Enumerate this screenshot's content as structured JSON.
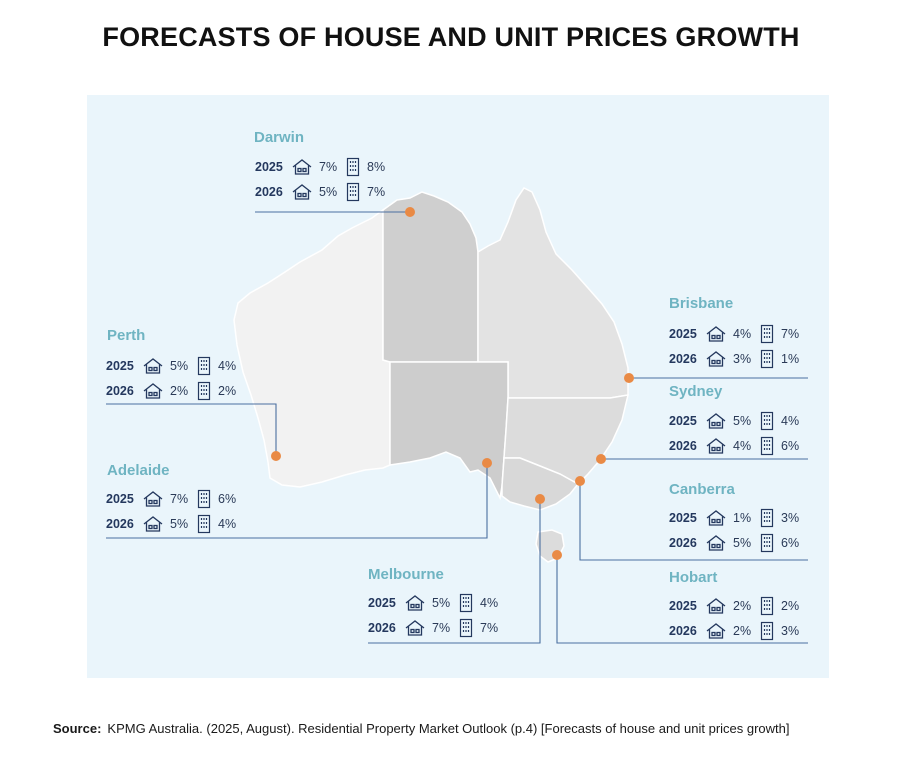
{
  "title": "FORECASTS OF HOUSE AND UNIT PRICES GROWTH",
  "source_label": "Source:",
  "source_text": "KPMG Australia. (2025, August). Residential Property Market Outlook (p.4) [Forecasts of house and unit prices growth]",
  "colors": {
    "marker": "#e98a45",
    "leader": "#4b6fa0",
    "city": "#6fb4c2",
    "wa": "#f2f2f2",
    "nt": "#cfcfcf",
    "qld": "#e3e3e3",
    "sa": "#cdcdcd",
    "nsw": "#dcdcdc",
    "vic": "#d8d8d8",
    "tas": "#dcdcdc",
    "background": "#eaf5fb"
  },
  "icons": {
    "house": "house-icon",
    "unit": "apartment-building-icon"
  },
  "cities": [
    {
      "name": "Darwin",
      "rows": [
        {
          "year": "2025",
          "house": "7%",
          "unit": "8%"
        },
        {
          "year": "2026",
          "house": "5%",
          "unit": "7%"
        }
      ]
    },
    {
      "name": "Perth",
      "rows": [
        {
          "year": "2025",
          "house": "5%",
          "unit": "4%"
        },
        {
          "year": "2026",
          "house": "2%",
          "unit": "2%"
        }
      ]
    },
    {
      "name": "Adelaide",
      "rows": [
        {
          "year": "2025",
          "house": "7%",
          "unit": "6%"
        },
        {
          "year": "2026",
          "house": "5%",
          "unit": "4%"
        }
      ]
    },
    {
      "name": "Melbourne",
      "rows": [
        {
          "year": "2025",
          "house": "5%",
          "unit": "4%"
        },
        {
          "year": "2026",
          "house": "7%",
          "unit": "7%"
        }
      ]
    },
    {
      "name": "Brisbane",
      "rows": [
        {
          "year": "2025",
          "house": "4%",
          "unit": "7%"
        },
        {
          "year": "2026",
          "house": "3%",
          "unit": "1%"
        }
      ]
    },
    {
      "name": "Sydney",
      "rows": [
        {
          "year": "2025",
          "house": "5%",
          "unit": "4%"
        },
        {
          "year": "2026",
          "house": "4%",
          "unit": "6%"
        }
      ]
    },
    {
      "name": "Canberra",
      "rows": [
        {
          "year": "2025",
          "house": "1%",
          "unit": "3%"
        },
        {
          "year": "2026",
          "house": "5%",
          "unit": "6%"
        }
      ]
    },
    {
      "name": "Hobart",
      "rows": [
        {
          "year": "2025",
          "house": "2%",
          "unit": "2%"
        },
        {
          "year": "2026",
          "house": "2%",
          "unit": "3%"
        }
      ]
    }
  ]
}
